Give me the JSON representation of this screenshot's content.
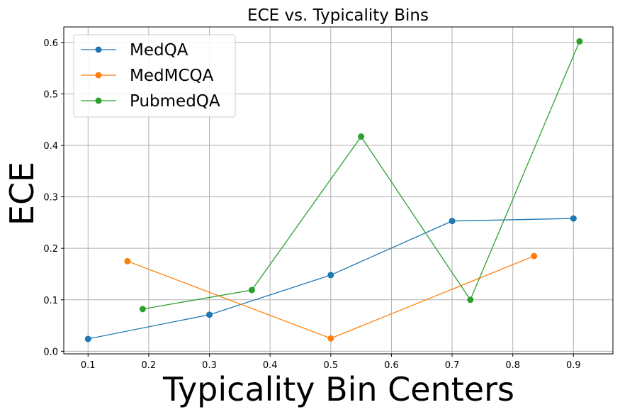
{
  "chart_data": {
    "type": "line",
    "title": "ECE vs. Typicality Bins",
    "xlabel": "Typicality Bin Centers",
    "ylabel": "ECE",
    "xlim": [
      0.06,
      0.965
    ],
    "ylim": [
      -0.005,
      0.63
    ],
    "xticks": [
      0.1,
      0.2,
      0.3,
      0.4,
      0.5,
      0.6,
      0.7,
      0.8,
      0.9
    ],
    "yticks": [
      0.0,
      0.1,
      0.2,
      0.3,
      0.4,
      0.5,
      0.6
    ],
    "grid": true,
    "legend_position": "upper-left",
    "series": [
      {
        "name": "MedQA",
        "color": "#1f77b4",
        "x": [
          0.1,
          0.3,
          0.5,
          0.7,
          0.9
        ],
        "y": [
          0.024,
          0.071,
          0.148,
          0.253,
          0.258
        ]
      },
      {
        "name": "MedMCQA",
        "color": "#ff7f0e",
        "x": [
          0.165,
          0.5,
          0.835
        ],
        "y": [
          0.175,
          0.025,
          0.185
        ]
      },
      {
        "name": "PubmedQA",
        "color": "#2ca02c",
        "x": [
          0.19,
          0.37,
          0.55,
          0.73,
          0.91
        ],
        "y": [
          0.082,
          0.119,
          0.417,
          0.1,
          0.602
        ]
      }
    ]
  }
}
